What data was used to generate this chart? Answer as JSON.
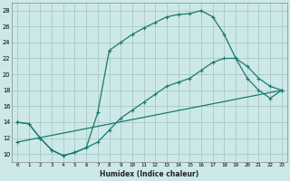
{
  "xlabel": "Humidex (Indice chaleur)",
  "bg_color": "#cde8e8",
  "grid_color": "#a8c8c8",
  "line_color": "#1a7a6a",
  "xlim": [
    -0.5,
    23.5
  ],
  "ylim": [
    9,
    29
  ],
  "xticks": [
    0,
    1,
    2,
    3,
    4,
    5,
    6,
    7,
    8,
    9,
    10,
    11,
    12,
    13,
    14,
    15,
    16,
    17,
    18,
    19,
    20,
    21,
    22,
    23
  ],
  "yticks": [
    10,
    12,
    14,
    16,
    18,
    20,
    22,
    24,
    26,
    28
  ],
  "line1_x": [
    0,
    1,
    2,
    3,
    4,
    5,
    6,
    7,
    8,
    9,
    10,
    11,
    12,
    13,
    14,
    15,
    16,
    17,
    18,
    19,
    20,
    21,
    22,
    23
  ],
  "line1_y": [
    14,
    13.8,
    12,
    10.5,
    9.8,
    10.2,
    10.8,
    15.2,
    23,
    24,
    25,
    25.8,
    26.5,
    27.2,
    27.5,
    27.6,
    28,
    27.2,
    25,
    22,
    21,
    19.5,
    18.5,
    18
  ],
  "line2_x": [
    0,
    1,
    2,
    3,
    4,
    5,
    6,
    7,
    8,
    9,
    10,
    11,
    12,
    13,
    14,
    15,
    16,
    17,
    18,
    19,
    20,
    21,
    22,
    23
  ],
  "line2_y": [
    14,
    13.8,
    12,
    10.5,
    9.8,
    10.2,
    10.8,
    11.5,
    13,
    14.5,
    15.5,
    16.5,
    17.5,
    18.5,
    19,
    19.5,
    20.5,
    21.5,
    22,
    22,
    19.5,
    18,
    17,
    18
  ],
  "line3_x": [
    0,
    23
  ],
  "line3_y": [
    11.5,
    18
  ]
}
